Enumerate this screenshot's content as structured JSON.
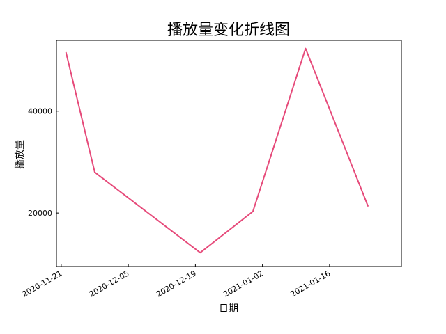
{
  "chart_data": {
    "type": "line",
    "title": "播放量变化折线图",
    "xlabel": "日期",
    "ylabel": "播放量",
    "x": [
      "2020-11-22",
      "2020-11-28",
      "2020-12-20",
      "2020-12-31",
      "2021-01-11",
      "2021-01-24"
    ],
    "series": [
      {
        "values": [
          51500,
          28000,
          12200,
          20300,
          52300,
          21400
        ],
        "color": "#e64a7a"
      }
    ],
    "xlim": [
      "2020-11-20",
      "2021-01-31"
    ],
    "ylim": [
      9500,
      53900
    ],
    "x_ticks": [
      "2020-11-21",
      "2020-12-05",
      "2020-12-19",
      "2021-01-02",
      "2021-01-16"
    ],
    "y_ticks": [
      20000,
      40000
    ],
    "grid": false,
    "legend": "none"
  }
}
